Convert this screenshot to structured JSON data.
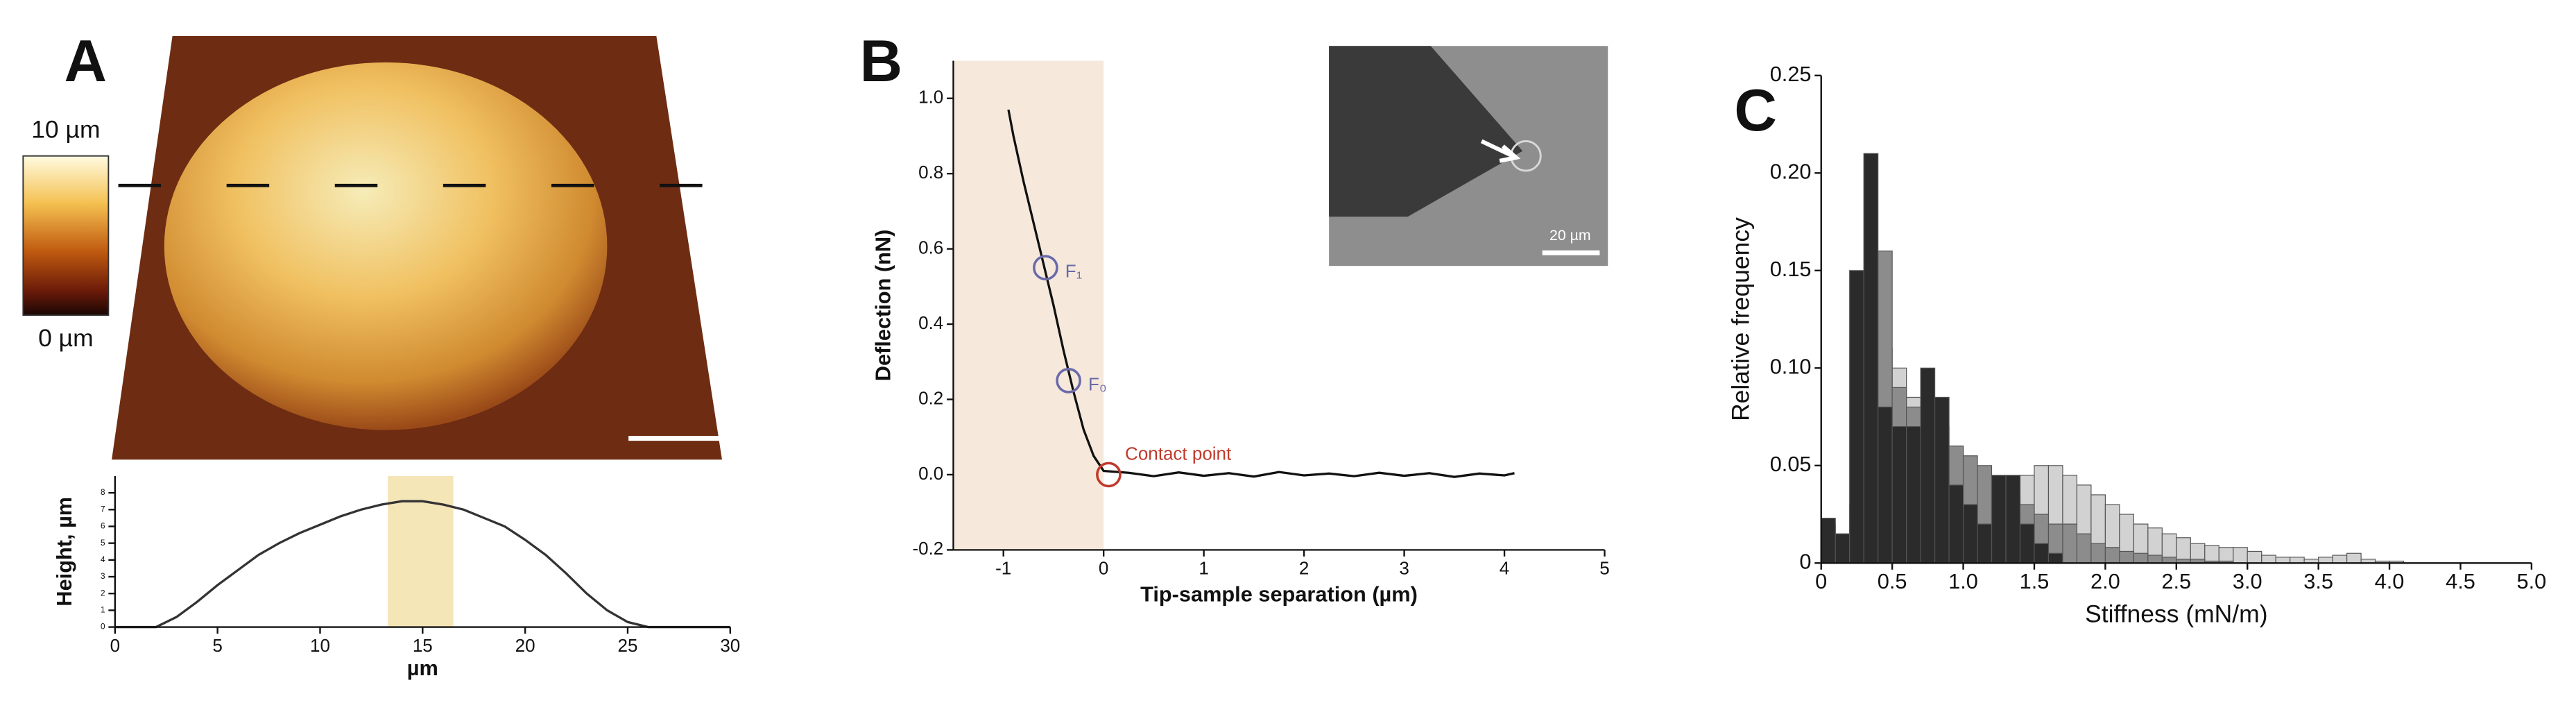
{
  "figure": {
    "panel_labels": [
      "A",
      "B",
      "C"
    ],
    "colorbar_labels": [
      "10 µm",
      "0 µm"
    ],
    "inset_scale_label": "20 µm"
  },
  "chart_data": [
    {
      "type": "line",
      "x_label": "µm",
      "y_label": "Height, µm",
      "x": [
        0,
        1,
        2,
        3,
        4,
        5,
        6,
        7,
        8,
        9,
        10,
        11,
        12,
        13,
        14,
        15,
        16,
        17,
        18,
        19,
        20,
        21,
        22,
        23,
        24,
        25,
        26,
        27,
        28,
        29,
        30
      ],
      "series": [
        {
          "color": "#333333",
          "values": [
            0,
            0,
            0,
            0.6,
            1.5,
            2.5,
            3.4,
            4.3,
            5.0,
            5.6,
            6.1,
            6.6,
            7.0,
            7.3,
            7.5,
            7.5,
            7.3,
            7.0,
            6.5,
            6.0,
            5.2,
            4.3,
            3.2,
            2.0,
            1.0,
            0.3,
            0,
            0,
            0,
            0,
            0
          ]
        }
      ],
      "shaded_range": [
        13.3,
        16.5
      ],
      "shaded_color": "#f5e6b8",
      "xlim": [
        0,
        30
      ],
      "ylim": [
        0,
        9
      ],
      "xticks": [
        0,
        5,
        10,
        15,
        20,
        25,
        30
      ],
      "yticks": [
        0,
        1,
        2,
        3,
        4,
        5,
        6,
        7,
        8
      ]
    },
    {
      "type": "line",
      "x_label": "Tip-sample separation (µm)",
      "y_label": "Deflection (nN)",
      "x": [
        -0.95,
        -0.9,
        -0.8,
        -0.7,
        -0.6,
        -0.5,
        -0.4,
        -0.3,
        -0.2,
        -0.1,
        0,
        0.25,
        0.5,
        0.75,
        1,
        1.25,
        1.5,
        1.75,
        2,
        2.25,
        2.5,
        2.75,
        3,
        3.25,
        3.5,
        3.75,
        4,
        4.1
      ],
      "series": [
        {
          "color": "#111111",
          "values": [
            0.97,
            0.9,
            0.78,
            0.67,
            0.56,
            0.45,
            0.33,
            0.22,
            0.12,
            0.05,
            0.01,
            0.005,
            -0.004,
            0.006,
            -0.003,
            0.004,
            -0.005,
            0.007,
            -0.002,
            0.003,
            -0.004,
            0.005,
            -0.003,
            0.004,
            -0.006,
            0.003,
            -0.002,
            0.004
          ]
        }
      ],
      "shaded_range": [
        -1.5,
        0
      ],
      "shaded_color": "#f6e9dc",
      "markers": [
        {
          "x": -0.58,
          "y": 0.55,
          "color": "#6a6aa8",
          "label": "F₁"
        },
        {
          "x": -0.35,
          "y": 0.25,
          "color": "#6a6aa8",
          "label": "F₀"
        },
        {
          "x": 0.05,
          "y": 0,
          "color": "#c0392b",
          "label": "Contact point"
        }
      ],
      "xlim": [
        -1.5,
        5
      ],
      "ylim": [
        -0.2,
        1.1
      ],
      "xticks": [
        -1,
        0,
        1,
        2,
        3,
        4,
        5
      ],
      "yticks": [
        -0.2,
        {
          "value": 0,
          "label": "0.0"
        },
        0.2,
        0.4,
        0.6,
        0.8,
        {
          "value": 1,
          "label": "1.0"
        }
      ]
    },
    {
      "type": "histogram",
      "x_label": "Stiffness (mN/m)",
      "y_label": "Relative frequency",
      "bins": [
        0,
        0.1,
        0.2,
        0.3,
        0.4,
        0.5,
        0.6,
        0.7,
        0.8,
        0.9,
        1,
        1.1,
        1.2,
        1.3,
        1.4,
        1.5,
        1.6,
        1.7,
        1.8,
        1.9,
        2,
        2.1,
        2.2,
        2.3,
        2.4,
        2.5,
        2.6,
        2.7,
        2.8,
        2.9,
        3,
        3.1,
        3.2,
        3.3,
        3.4,
        3.5,
        3.6,
        3.7,
        3.8,
        3.9,
        4,
        4.1,
        4.2,
        4.3,
        4.4,
        4.5,
        4.6,
        4.7,
        4.8,
        4.9,
        5
      ],
      "series": [
        {
          "color": "#d2d2d2",
          "values": [
            0,
            0,
            0.02,
            0.05,
            0.11,
            0.1,
            0.085,
            0.075,
            0.07,
            0.06,
            0.05,
            0.045,
            0.04,
            0.042,
            0.045,
            0.05,
            0.05,
            0.045,
            0.04,
            0.035,
            0.03,
            0.025,
            0.02,
            0.018,
            0.015,
            0.013,
            0.01,
            0.009,
            0.008,
            0.008,
            0.006,
            0.004,
            0.003,
            0.003,
            0.002,
            0.003,
            0.004,
            0.005,
            0.002,
            0.001,
            0.001,
            0,
            0,
            0,
            0,
            0,
            0,
            0,
            0,
            0
          ]
        },
        {
          "color": "#8c8c8c",
          "values": [
            0.02,
            0.005,
            0.03,
            0.13,
            0.16,
            0.09,
            0.08,
            0.07,
            0.06,
            0.06,
            0.055,
            0.05,
            0.04,
            0.035,
            0.03,
            0.025,
            0.02,
            0.02,
            0.015,
            0.01,
            0.008,
            0.006,
            0.005,
            0.004,
            0.003,
            0.002,
            0.002,
            0.001,
            0.001,
            0,
            0,
            0,
            0,
            0,
            0,
            0,
            0,
            0,
            0,
            0,
            0,
            0,
            0,
            0,
            0,
            0,
            0,
            0,
            0,
            0
          ]
        },
        {
          "color": "#2b2b2b",
          "values": [
            0.023,
            0.015,
            0.15,
            0.21,
            0.08,
            0.07,
            0.07,
            0.1,
            0.085,
            0.04,
            0.03,
            0.02,
            0.045,
            0.045,
            0.02,
            0.01,
            0.005,
            0,
            0,
            0,
            0,
            0,
            0,
            0,
            0,
            0,
            0,
            0,
            0,
            0,
            0,
            0,
            0,
            0,
            0,
            0,
            0,
            0,
            0,
            0,
            0,
            0,
            0,
            0,
            0,
            0,
            0,
            0,
            0,
            0
          ]
        }
      ],
      "xlim": [
        0,
        5
      ],
      "ylim": [
        0,
        0.25
      ],
      "xticks": [
        0,
        0.5,
        {
          "value": 1,
          "label": "1.0"
        },
        1.5,
        {
          "value": 2,
          "label": "2.0"
        },
        2.5,
        {
          "value": 3,
          "label": "3.0"
        },
        3.5,
        {
          "value": 4,
          "label": "4.0"
        },
        4.5,
        {
          "value": 5,
          "label": "5.0"
        }
      ],
      "yticks": [
        0,
        0.05,
        {
          "value": 0.1,
          "label": "0.10"
        },
        0.15,
        {
          "value": 0.2,
          "label": "0.20"
        },
        {
          "value": 0.25,
          "label": "0.25"
        }
      ]
    }
  ]
}
